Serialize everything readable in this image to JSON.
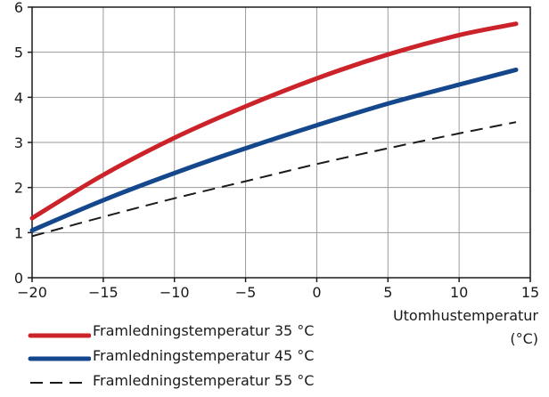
{
  "chart_data": {
    "type": "line",
    "title": "",
    "xlabel": "Utomhustemperatur (°C)",
    "xlabel_lines": [
      "Utomhustemperatur",
      "(°C)"
    ],
    "ylabel": "",
    "xlim": [
      -20,
      15
    ],
    "ylim": [
      0,
      6
    ],
    "x_ticks": [
      -20,
      -15,
      -10,
      -5,
      0,
      5,
      10,
      15
    ],
    "x_tick_labels": [
      "−20",
      "−15",
      "−10",
      "−5",
      "0",
      "5",
      "10",
      "15"
    ],
    "y_ticks": [
      0,
      1,
      2,
      3,
      4,
      5,
      6
    ],
    "y_tick_labels": [
      "0",
      "1",
      "2",
      "3",
      "4",
      "5",
      "6"
    ],
    "grid": true,
    "legend_position": "bottom-left",
    "series": [
      {
        "name": "Framledningstemperatur 35 °C",
        "color": "#cc2229",
        "style": "solid",
        "x": [
          -20,
          -15,
          -10,
          -5,
          0,
          5,
          10,
          14
        ],
        "y": [
          1.32,
          2.28,
          3.1,
          3.8,
          4.42,
          4.95,
          5.38,
          5.63
        ]
      },
      {
        "name": "Framledningstemperatur 45 °C",
        "color": "#14478c",
        "style": "solid",
        "x": [
          -20,
          -15,
          -10,
          -5,
          0,
          5,
          10,
          14
        ],
        "y": [
          1.05,
          1.72,
          2.32,
          2.87,
          3.38,
          3.86,
          4.28,
          4.61
        ]
      },
      {
        "name": "Framledningstemperatur 55 °C",
        "color": "#1a1a1a",
        "style": "dashed",
        "x": [
          -20,
          -15,
          -10,
          -5,
          0,
          5,
          10,
          14
        ],
        "y": [
          0.92,
          1.35,
          1.76,
          2.14,
          2.52,
          2.87,
          3.2,
          3.45
        ]
      }
    ]
  }
}
